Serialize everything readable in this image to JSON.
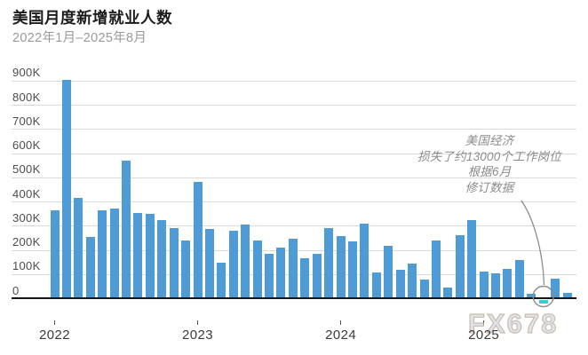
{
  "header": {
    "title": "美国月度新增就业人数",
    "subtitle": "2022年1月–2025年8月"
  },
  "annotation": {
    "lines": [
      "美国经济",
      "损失了约13000个工作岗位",
      "根据6月",
      "修订数据"
    ]
  },
  "watermark": "FX678",
  "colors": {
    "bar": "#4f9bd5",
    "highlight_bar": "#35ced6",
    "gridline": "#dadada",
    "axis_line": "#151515",
    "leader": "#8c8c8c",
    "annotation_text": "#8c8c8c"
  },
  "chart_data": {
    "type": "bar",
    "title": "美国月度新增就业人数",
    "subtitle": "2022年1月–2025年8月",
    "unit": "K (thousands of jobs, monthly change)",
    "x": [
      "2022-01",
      "2022-02",
      "2022-03",
      "2022-04",
      "2022-05",
      "2022-06",
      "2022-07",
      "2022-08",
      "2022-09",
      "2022-10",
      "2022-11",
      "2022-12",
      "2023-01",
      "2023-02",
      "2023-03",
      "2023-04",
      "2023-05",
      "2023-06",
      "2023-07",
      "2023-08",
      "2023-09",
      "2023-10",
      "2023-11",
      "2023-12",
      "2024-01",
      "2024-02",
      "2024-03",
      "2024-04",
      "2024-05",
      "2024-06",
      "2024-07",
      "2024-08",
      "2024-09",
      "2024-10",
      "2024-11",
      "2024-12",
      "2025-01",
      "2025-02",
      "2025-03",
      "2025-04",
      "2025-05",
      "2025-06",
      "2025-07",
      "2025-08"
    ],
    "values": [
      364,
      904,
      414,
      254,
      364,
      370,
      568,
      352,
      350,
      324,
      290,
      239,
      482,
      287,
      146,
      278,
      303,
      240,
      184,
      210,
      246,
      165,
      182,
      290,
      256,
      236,
      310,
      108,
      216,
      118,
      144,
      78,
      240,
      44,
      261,
      323,
      111,
      102,
      120,
      158,
      19,
      -13,
      79,
      22
    ],
    "highlight": {
      "index": 41,
      "month": "2025-06",
      "value": -13,
      "note": "美国经济损失了约13000个工作岗位，根据6月修订数据"
    },
    "yticks": [
      "0",
      "100K",
      "200K",
      "300K",
      "400K",
      "500K",
      "600K",
      "700K",
      "800K",
      "900K"
    ],
    "ylim": [
      -13,
      904
    ],
    "ytick_interval": 100,
    "xticks": [
      {
        "label": "2022",
        "month_index": 0
      },
      {
        "label": "2023",
        "month_index": 12
      },
      {
        "label": "2024",
        "month_index": 24
      },
      {
        "label": "2025",
        "month_index": 36
      }
    ],
    "grid": "horizontal",
    "legend": "none"
  }
}
